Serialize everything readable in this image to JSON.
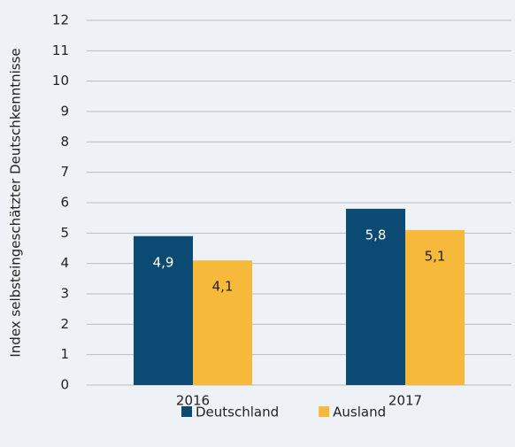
{
  "chart_data": {
    "type": "bar",
    "ylabel": "Index selbsteingeschätzter Deutschkenntnisse",
    "categories": [
      "2016",
      "2017"
    ],
    "series": [
      {
        "name": "Deutschland",
        "color": "#0b4a73",
        "values": [
          4.9,
          5.8
        ],
        "value_labels": [
          "4,9",
          "5,8"
        ],
        "label_color": "#ffffff"
      },
      {
        "name": "Ausland",
        "color": "#f6b93b",
        "values": [
          4.1,
          5.1
        ],
        "value_labels": [
          "4,1",
          "5,1"
        ],
        "label_color": "#222222"
      }
    ],
    "ylim": [
      0,
      12
    ],
    "yticks": [
      0,
      1,
      2,
      3,
      4,
      5,
      6,
      7,
      8,
      9,
      10,
      11,
      12
    ],
    "grid": true,
    "legend": "bottom"
  }
}
